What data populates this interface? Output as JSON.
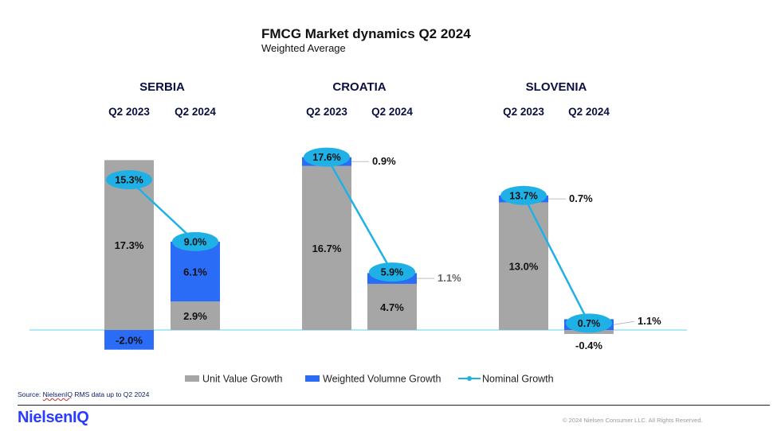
{
  "title": "FMCG Market dynamics Q2 2024",
  "subtitle": "Weighted Average",
  "colors": {
    "unit_value": "#a6a6a6",
    "volume": "#2b6cf6",
    "nominal": "#1fb1e6",
    "baseline": "#5fd3e8",
    "country_text": "#0a1040"
  },
  "chart_data": {
    "type": "bar",
    "stacked": true,
    "groups": [
      {
        "country": "SERBIA",
        "periods": [
          {
            "label": "Q2 2023",
            "unit_value_growth": 17.3,
            "volume_growth": -2.0,
            "nominal_growth": 15.3,
            "unit_label": "17.3%",
            "volume_label": "-2.0%",
            "nominal_label": "15.3%"
          },
          {
            "label": "Q2 2024",
            "unit_value_growth": 2.9,
            "volume_growth": 6.1,
            "nominal_growth": 9.0,
            "unit_label": "2.9%",
            "volume_label": "6.1%",
            "nominal_label": "9.0%"
          }
        ]
      },
      {
        "country": "CROATIA",
        "periods": [
          {
            "label": "Q2 2023",
            "unit_value_growth": 16.7,
            "volume_growth": 0.9,
            "nominal_growth": 17.6,
            "unit_label": "16.7%",
            "volume_label": "0.9%",
            "nominal_label": "17.6%"
          },
          {
            "label": "Q2 2024",
            "unit_value_growth": 4.7,
            "volume_growth": 1.1,
            "nominal_growth": 5.9,
            "unit_label": "4.7%",
            "volume_label": "1.1%",
            "nominal_label": "5.9%"
          }
        ]
      },
      {
        "country": "SLOVENIA",
        "periods": [
          {
            "label": "Q2 2023",
            "unit_value_growth": 13.0,
            "volume_growth": 0.7,
            "nominal_growth": 13.7,
            "unit_label": "13.0%",
            "volume_label": "0.7%",
            "nominal_label": "13.7%"
          },
          {
            "label": "Q2 2024",
            "unit_value_growth": -0.4,
            "volume_growth": 1.1,
            "nominal_growth": 0.7,
            "unit_label": "-0.4%",
            "volume_label": "1.1%",
            "nominal_label": "0.7%"
          }
        ]
      }
    ],
    "series": [
      {
        "name": "Unit Value Growth",
        "kind": "bar"
      },
      {
        "name": "Weighted Volumne Growth",
        "kind": "bar"
      },
      {
        "name": "Nominal Growth",
        "kind": "line"
      }
    ],
    "legend_position": "bottom"
  },
  "footer": {
    "source_prefix": "Source: ",
    "source_brand": "NielsenIQ",
    "source_rest": " RMS data up to Q2 2024",
    "logo": "NielsenIQ",
    "copyright": "© 2024 Nielsen Consumer LLC. All Rights Reserved."
  }
}
